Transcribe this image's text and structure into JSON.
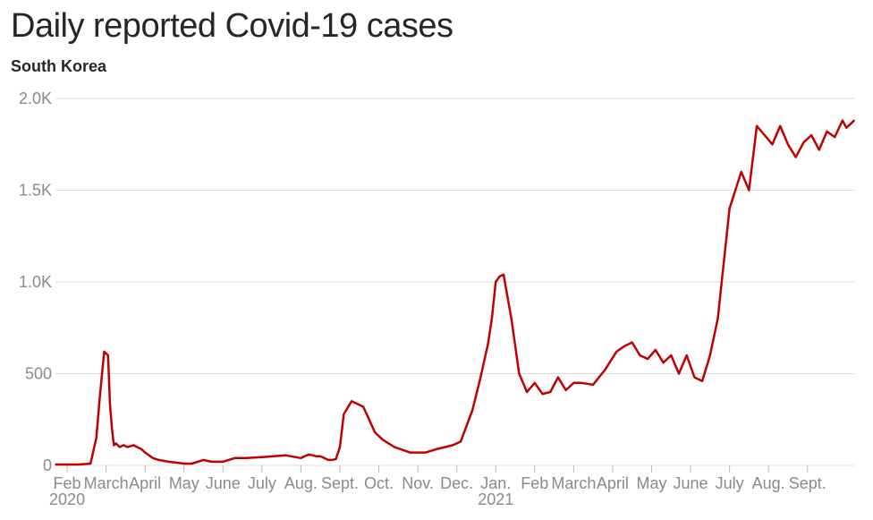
{
  "title": "Daily reported Covid-19 cases",
  "subtitle": "South Korea",
  "chart_data": {
    "type": "line",
    "title": "Daily reported Covid-19 cases",
    "subtitle": "South Korea",
    "series_color": "#c00000",
    "grid_color": "#dedede",
    "ylim": [
      0,
      2000
    ],
    "y_ticks": [
      {
        "value": 0,
        "label": "0"
      },
      {
        "value": 500,
        "label": "500"
      },
      {
        "value": 1000,
        "label": "1.0K"
      },
      {
        "value": 1500,
        "label": "1.5K"
      },
      {
        "value": 2000,
        "label": "2.0K"
      }
    ],
    "x_ticks": [
      {
        "x": 1,
        "label": "Feb",
        "sub": "2020"
      },
      {
        "x": 2,
        "label": "March"
      },
      {
        "x": 3,
        "label": "April"
      },
      {
        "x": 4,
        "label": "May"
      },
      {
        "x": 5,
        "label": "June"
      },
      {
        "x": 6,
        "label": "July"
      },
      {
        "x": 7,
        "label": "Aug."
      },
      {
        "x": 8,
        "label": "Sept."
      },
      {
        "x": 9,
        "label": "Oct."
      },
      {
        "x": 10,
        "label": "Nov."
      },
      {
        "x": 11,
        "label": "Dec."
      },
      {
        "x": 12,
        "label": "Jan.",
        "sub": "2021"
      },
      {
        "x": 13,
        "label": "Feb"
      },
      {
        "x": 14,
        "label": "March"
      },
      {
        "x": 15,
        "label": "April"
      },
      {
        "x": 16,
        "label": "May"
      },
      {
        "x": 17,
        "label": "June"
      },
      {
        "x": 18,
        "label": "July"
      },
      {
        "x": 19,
        "label": "Aug."
      },
      {
        "x": 20,
        "label": "Sept."
      }
    ],
    "xlim": [
      0.7,
      21.2
    ],
    "x": [
      0.7,
      1.3,
      1.6,
      1.75,
      1.85,
      1.95,
      2.05,
      2.1,
      2.15,
      2.2,
      2.25,
      2.35,
      2.45,
      2.55,
      2.7,
      2.9,
      3.0,
      3.2,
      3.35,
      3.6,
      3.8,
      4.0,
      4.2,
      4.5,
      4.7,
      5.0,
      5.3,
      5.6,
      6.0,
      6.3,
      6.6,
      7.0,
      7.2,
      7.4,
      7.5,
      7.7,
      7.8,
      7.9,
      8.0,
      8.1,
      8.3,
      8.6,
      8.9,
      9.1,
      9.4,
      9.8,
      10.2,
      10.5,
      10.7,
      10.9,
      11.1,
      11.4,
      11.6,
      11.8,
      11.9,
      12.0,
      12.1,
      12.2,
      12.4,
      12.6,
      12.8,
      13.0,
      13.2,
      13.4,
      13.6,
      13.8,
      14.0,
      14.2,
      14.5,
      14.8,
      15.1,
      15.3,
      15.5,
      15.7,
      15.9,
      16.1,
      16.3,
      16.5,
      16.7,
      16.9,
      17.1,
      17.3,
      17.5,
      17.7,
      18.0,
      18.3,
      18.5,
      18.7,
      18.9,
      19.1,
      19.3,
      19.5,
      19.7,
      19.9,
      20.1,
      20.3,
      20.5,
      20.7,
      20.9,
      21.0,
      21.1,
      21.2
    ],
    "values": [
      5,
      5,
      10,
      150,
      400,
      620,
      600,
      330,
      200,
      110,
      120,
      100,
      110,
      100,
      110,
      90,
      70,
      40,
      30,
      20,
      15,
      10,
      10,
      30,
      20,
      20,
      40,
      40,
      45,
      50,
      55,
      40,
      60,
      50,
      50,
      30,
      30,
      35,
      100,
      280,
      350,
      320,
      180,
      140,
      100,
      70,
      70,
      90,
      100,
      110,
      130,
      300,
      470,
      660,
      800,
      1000,
      1030,
      1040,
      800,
      500,
      400,
      450,
      390,
      400,
      480,
      410,
      450,
      450,
      440,
      520,
      620,
      650,
      670,
      600,
      580,
      630,
      560,
      600,
      500,
      600,
      480,
      460,
      600,
      800,
      1400,
      1600,
      1500,
      1850,
      1800,
      1750,
      1850,
      1750,
      1680,
      1760,
      1800,
      1720,
      1820,
      1790,
      1880,
      1840,
      1860,
      1880
    ]
  }
}
